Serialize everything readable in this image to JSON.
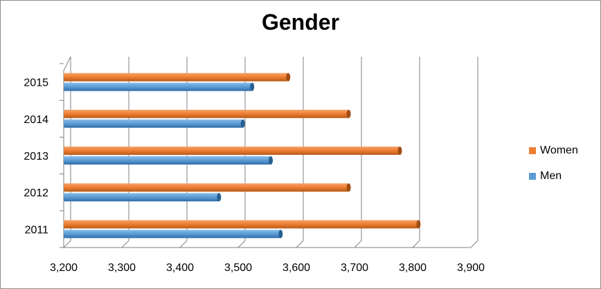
{
  "chart_data": {
    "type": "bar",
    "orientation": "horizontal",
    "title": "Gender",
    "categories": [
      "2011",
      "2012",
      "2013",
      "2014",
      "2015"
    ],
    "series": [
      {
        "name": "Women",
        "color": "#ed7d31",
        "values": [
          3810,
          3690,
          3778,
          3690,
          3586
        ]
      },
      {
        "name": "Men",
        "color": "#5b9bd5",
        "values": [
          3573,
          3467,
          3556,
          3508,
          3524
        ]
      }
    ],
    "xlim": [
      3200,
      3900
    ],
    "x_ticks": [
      "3,200",
      "3,300",
      "3,400",
      "3,500",
      "3,600",
      "3,700",
      "3,800",
      "3,900"
    ],
    "grid": true,
    "legend_position": "right",
    "legend_order": [
      "Women",
      "Men"
    ]
  }
}
